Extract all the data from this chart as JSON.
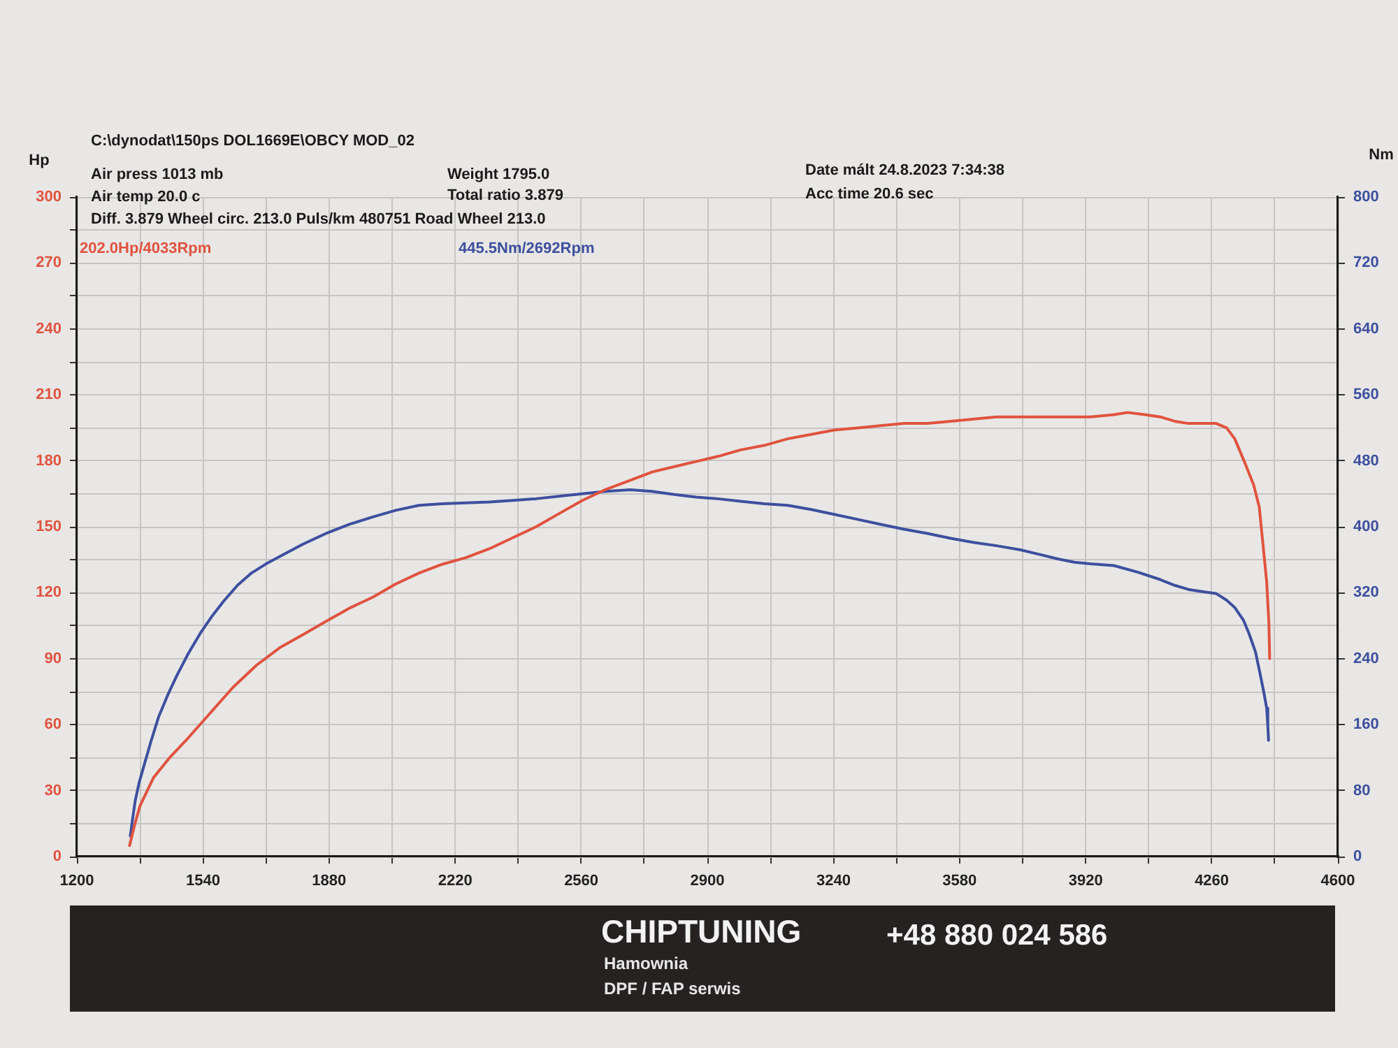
{
  "chart_data": {
    "type": "line",
    "title": "C:\\dynodat\\150ps DOL1669E\\OBCY MOD_02",
    "ylabel": "Hp",
    "y2label": "Nm",
    "annotations": [
      "Air press 1013 mb",
      "Weight 1795.0",
      "Date mált 24.8.2023 7:34:38",
      "Air temp 20.0 c",
      "Total ratio 3.879",
      "Acc time 20.6 sec",
      "Diff. 3.879 Wheel circ. 213.0 Puls/km 480751 Road Wheel 213.0",
      "CHIPTUNING",
      "+48 880 024 586",
      "Hamownia",
      "DPF / FAP serwis"
    ],
    "xlim": [
      1200,
      4600
    ],
    "xticks": [
      1200,
      {
        "value": 1370,
        "label": null
      },
      1540,
      {
        "value": 1710,
        "label": null
      },
      1880,
      {
        "value": 2050,
        "label": null
      },
      2220,
      {
        "value": 2390,
        "label": null
      },
      2560,
      {
        "value": 2730,
        "label": null
      },
      2900,
      {
        "value": 3070,
        "label": null
      },
      3240,
      {
        "value": 3410,
        "label": null
      },
      3580,
      {
        "value": 3750,
        "label": null
      },
      3920,
      {
        "value": 4090,
        "label": null
      },
      4260,
      {
        "value": 4430,
        "label": null
      },
      4600
    ],
    "ylim": [
      0,
      300
    ],
    "yticks": [
      0,
      {
        "value": 15,
        "label": null
      },
      30,
      {
        "value": 45,
        "label": null
      },
      60,
      {
        "value": 75,
        "label": null
      },
      90,
      {
        "value": 105,
        "label": null
      },
      120,
      {
        "value": 135,
        "label": null
      },
      150,
      {
        "value": 165,
        "label": null
      },
      180,
      {
        "value": 195,
        "label": null
      },
      210,
      {
        "value": 225,
        "label": null
      },
      240,
      {
        "value": 255,
        "label": null
      },
      270,
      {
        "value": 285,
        "label": null
      },
      300
    ],
    "y2lim": [
      0,
      800
    ],
    "y2ticks": [
      0,
      80,
      160,
      240,
      320,
      400,
      480,
      560,
      640,
      720,
      800
    ],
    "series": [
      {
        "name": "202.0Hp/4033Rpm",
        "color": "#e0533f",
        "x": [
          1342,
          1355,
          1370,
          1407,
          1450,
          1495,
          1558,
          1621,
          1684,
          1747,
          1810,
          1872,
          1935,
          1998,
          2060,
          2123,
          2186,
          2249,
          2312,
          2375,
          2438,
          2500,
          2563,
          2626,
          2690,
          2752,
          2802,
          2877,
          2928,
          2990,
          3053,
          3116,
          3180,
          3242,
          3305,
          3367,
          3430,
          3493,
          3556,
          3619,
          3680,
          3744,
          3807,
          3870,
          3933,
          3996,
          4033,
          4080,
          4121,
          4160,
          4197,
          4240,
          4272,
          4300,
          4322,
          4347,
          4373,
          4388,
          4398,
          4408,
          4414,
          4416
        ],
        "values": [
          5,
          14,
          23,
          36,
          45,
          53,
          65,
          77,
          87,
          95,
          101,
          107,
          113,
          118,
          124,
          129,
          133,
          136,
          140,
          145,
          150,
          156,
          162,
          167,
          171,
          175,
          177,
          180,
          182,
          185,
          187,
          190,
          192,
          194,
          195,
          196,
          197,
          197,
          198,
          199,
          200,
          200,
          200,
          200,
          200,
          201,
          202,
          201,
          200,
          198,
          197,
          197,
          197,
          195,
          190,
          180,
          169,
          159,
          142,
          125,
          106,
          90
        ]
      },
      {
        "name": "445.5Nm/2692Rpm",
        "color": "#3d4f9e",
        "axis": "y2",
        "x": [
          1344,
          1350,
          1357,
          1368,
          1382,
          1400,
          1420,
          1445,
          1470,
          1500,
          1533,
          1565,
          1596,
          1633,
          1671,
          1710,
          1747,
          1810,
          1872,
          1935,
          1998,
          2060,
          2123,
          2186,
          2249,
          2312,
          2375,
          2438,
          2500,
          2563,
          2626,
          2692,
          2750,
          2814,
          2870,
          2928,
          2990,
          3053,
          3116,
          3180,
          3242,
          3305,
          3367,
          3430,
          3493,
          3556,
          3619,
          3680,
          3744,
          3800,
          3845,
          3890,
          3933,
          3996,
          4060,
          4121,
          4160,
          4197,
          4240,
          4272,
          4300,
          4322,
          4345,
          4360,
          4378,
          4391,
          4400,
          4408,
          4411,
          4413
        ],
        "values": [
          25,
          45,
          67,
          90,
          112,
          140,
          169,
          196,
          220,
          246,
          271,
          292,
          310,
          329,
          344,
          355,
          364,
          379,
          392,
          403,
          412,
          420,
          426,
          428,
          429,
          430,
          432,
          434,
          437,
          440,
          443,
          445,
          443,
          439,
          436,
          434,
          431,
          428,
          426,
          421,
          415,
          409,
          403,
          397,
          392,
          386,
          381,
          377,
          372,
          366,
          361,
          357,
          355,
          353,
          345,
          336,
          329,
          324,
          321,
          319,
          311,
          302,
          287,
          271,
          248,
          220,
          200,
          180,
          160,
          141
        ]
      }
    ],
    "grid": true,
    "legend": "top left",
    "marker": "none",
    "line_style": "solid"
  }
}
